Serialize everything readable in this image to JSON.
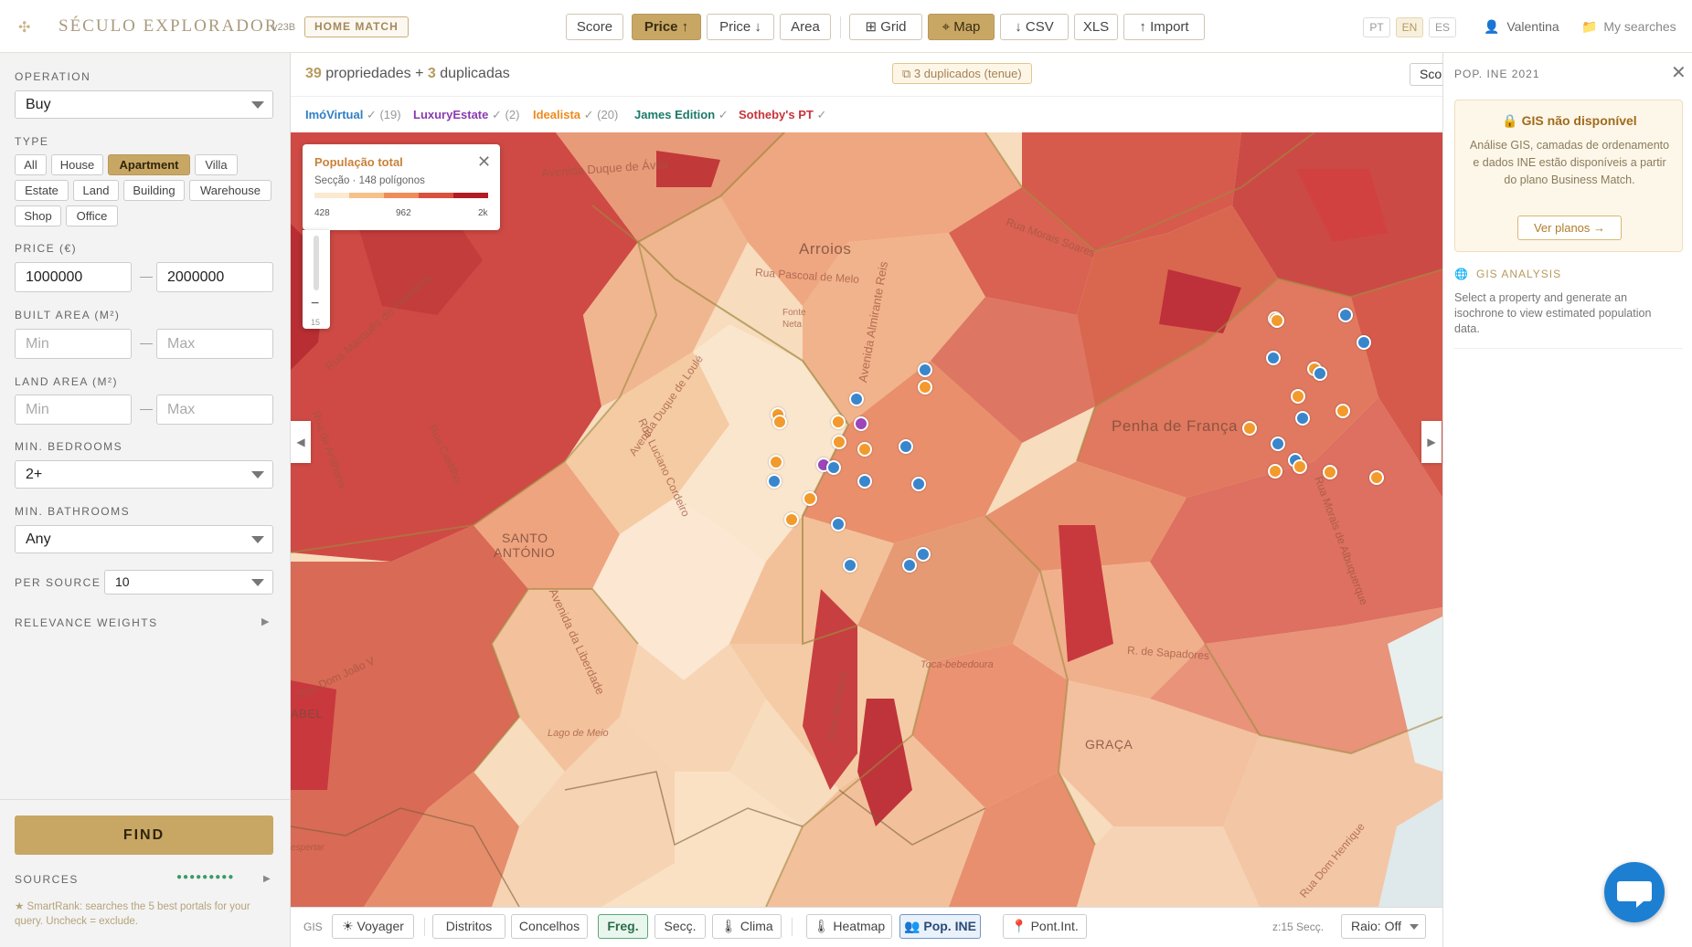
{
  "header": {
    "app_title": "SÉCULO EXPLORADOR",
    "version": "v23B",
    "badge": "HOME MATCH",
    "sort_buttons": [
      {
        "label": "Score",
        "active": false
      },
      {
        "label": "Price ↑",
        "active": true
      },
      {
        "label": "Price ↓",
        "active": false
      },
      {
        "label": "Area",
        "active": false
      }
    ],
    "view_buttons": [
      {
        "label": "⊞ Grid",
        "active": false
      },
      {
        "label": "⌖ Map",
        "active": true
      }
    ],
    "export_buttons": [
      "↓ CSV",
      "XLS",
      "↑ Import"
    ],
    "languages": [
      {
        "label": "PT",
        "active": false
      },
      {
        "label": "EN",
        "active": true
      },
      {
        "label": "ES",
        "active": false
      }
    ],
    "user_name": "Valentina",
    "my_searches": "My searches"
  },
  "sidebar": {
    "operation_label": "OPERATION",
    "operation_value": "Buy",
    "type_label": "TYPE",
    "types": [
      {
        "label": "All",
        "active": false
      },
      {
        "label": "House",
        "active": false
      },
      {
        "label": "Apartment",
        "active": true
      },
      {
        "label": "Villa",
        "active": false
      },
      {
        "label": "Estate",
        "active": false
      },
      {
        "label": "Land",
        "active": false
      },
      {
        "label": "Building",
        "active": false
      },
      {
        "label": "Warehouse",
        "active": false
      },
      {
        "label": "Shop",
        "active": false
      },
      {
        "label": "Office",
        "active": false
      }
    ],
    "price_label": "PRICE (€)",
    "price_min": "1000000",
    "price_max": "2000000",
    "built_area_label": "BUILT AREA (M²)",
    "land_area_label": "LAND AREA (M²)",
    "min_placeholder": "Min",
    "max_placeholder": "Max",
    "bedrooms_label": "MIN. BEDROOMS",
    "bedrooms_value": "2+",
    "bathrooms_label": "MIN. BATHROOMS",
    "bathrooms_value": "Any",
    "per_source_label": "PER SOURCE",
    "per_source_value": "10",
    "relevance_label": "RELEVANCE WEIGHTS",
    "find_label": "FIND",
    "sources_label": "SOURCES",
    "sources_dots": "●●●●●●●●●",
    "smartrank_note": "★ SmartRank: searches the 5 best portals for your query. Uncheck = exclude."
  },
  "results": {
    "count_total": "39",
    "count_text": "propriedades +",
    "count_dups": "3",
    "dups_text": "duplicadas",
    "dup_badge": "3 duplicados (tenue)",
    "sort_cut": "Sco",
    "sources": [
      {
        "name": "ImóVirtual",
        "count": "✓ (19)",
        "color": "#2f7fc4"
      },
      {
        "name": "LuxuryEstate",
        "count": "✓ (2)",
        "color": "#8a3ab0"
      },
      {
        "name": "Idealista",
        "count": "✓ (20)",
        "color": "#ef8a1d"
      },
      {
        "name": "James Edition",
        "count": "✓",
        "color": "#1b7a6a"
      },
      {
        "name": "Sotheby's PT",
        "count": "✓",
        "color": "#c8333a"
      }
    ]
  },
  "map": {
    "legend_title": "População total",
    "legend_sub": "Secção · 148 polígonos",
    "legend_ticks": [
      "428",
      "962",
      "2k"
    ],
    "legend_colors": [
      "#fbe9d0",
      "#f6c28c",
      "#ee8c5c",
      "#d9503f",
      "#b21d24"
    ],
    "zoom_level": "15",
    "labels": {
      "arroios": "Arroios",
      "penha": "Penha de França",
      "santo": "SANTO",
      "antonio": "ANTÓNIO",
      "graca": "GRAÇA",
      "abel": "ABEL",
      "lago": "Lago de Meio",
      "avila": "Avenida Duque de Ávila",
      "fontes": "Rua Marquês de Fronteira",
      "liberdade": "Avenida da Liberdade",
      "almirante": "Avenida Almirante Reis",
      "sapadores": "R. de Sapadores",
      "palma": "Rua da Palma",
      "cordeiro": "Rua Luciano Cordeiro",
      "castilho": "Rua Castilho",
      "artilharia": "Rua da Artilharia",
      "henrique": "Rua Dom Henrique",
      "pascoal": "Rua Pascoal de Melo",
      "loule": "Avenida Duque de Loulé",
      "sousa": "Rua Morais Soares",
      "bebedoura": "Toca-bebedoura",
      "albuquerque": "Rua Morais de Albuquerque",
      "domjoao": "Rua Dom João V",
      "esperta": "espertar",
      "fonte": "Fonte",
      "neta": "Neta"
    }
  },
  "gis": {
    "label": "GIS",
    "buttons": [
      {
        "label": "☀ Voyager",
        "state": ""
      },
      {
        "label": "Distritos",
        "state": ""
      },
      {
        "label": "Concelhos",
        "state": ""
      },
      {
        "label": "Freg.",
        "state": "on"
      },
      {
        "label": "Secç.",
        "state": ""
      },
      {
        "label": "🌡 Clima",
        "state": ""
      },
      {
        "label": "🌡 Heatmap",
        "state": ""
      },
      {
        "label": "👥 Pop. INE",
        "state": "on2"
      },
      {
        "label": "📍 Pont.Int.",
        "state": ""
      }
    ],
    "zoom_info": "z:15 Secç.",
    "radius_value": "Raio: Off"
  },
  "right_panel": {
    "title": "POP. INE 2021",
    "card_title": "🔒 GIS não disponível",
    "card_text": "Análise GIS, camadas de ordenamento e dados INE estão disponíveis a partir do plano Business Match.",
    "card_button": "Ver planos →",
    "analysis_title": "GIS ANALYSIS",
    "analysis_text": "Select a property and generate an isochrone to view estimated population data."
  },
  "colors": {
    "accent": "#c8a765",
    "imovirtual": "#3a86cc",
    "idealista": "#f39a2c",
    "luxury": "#9b45b8"
  }
}
